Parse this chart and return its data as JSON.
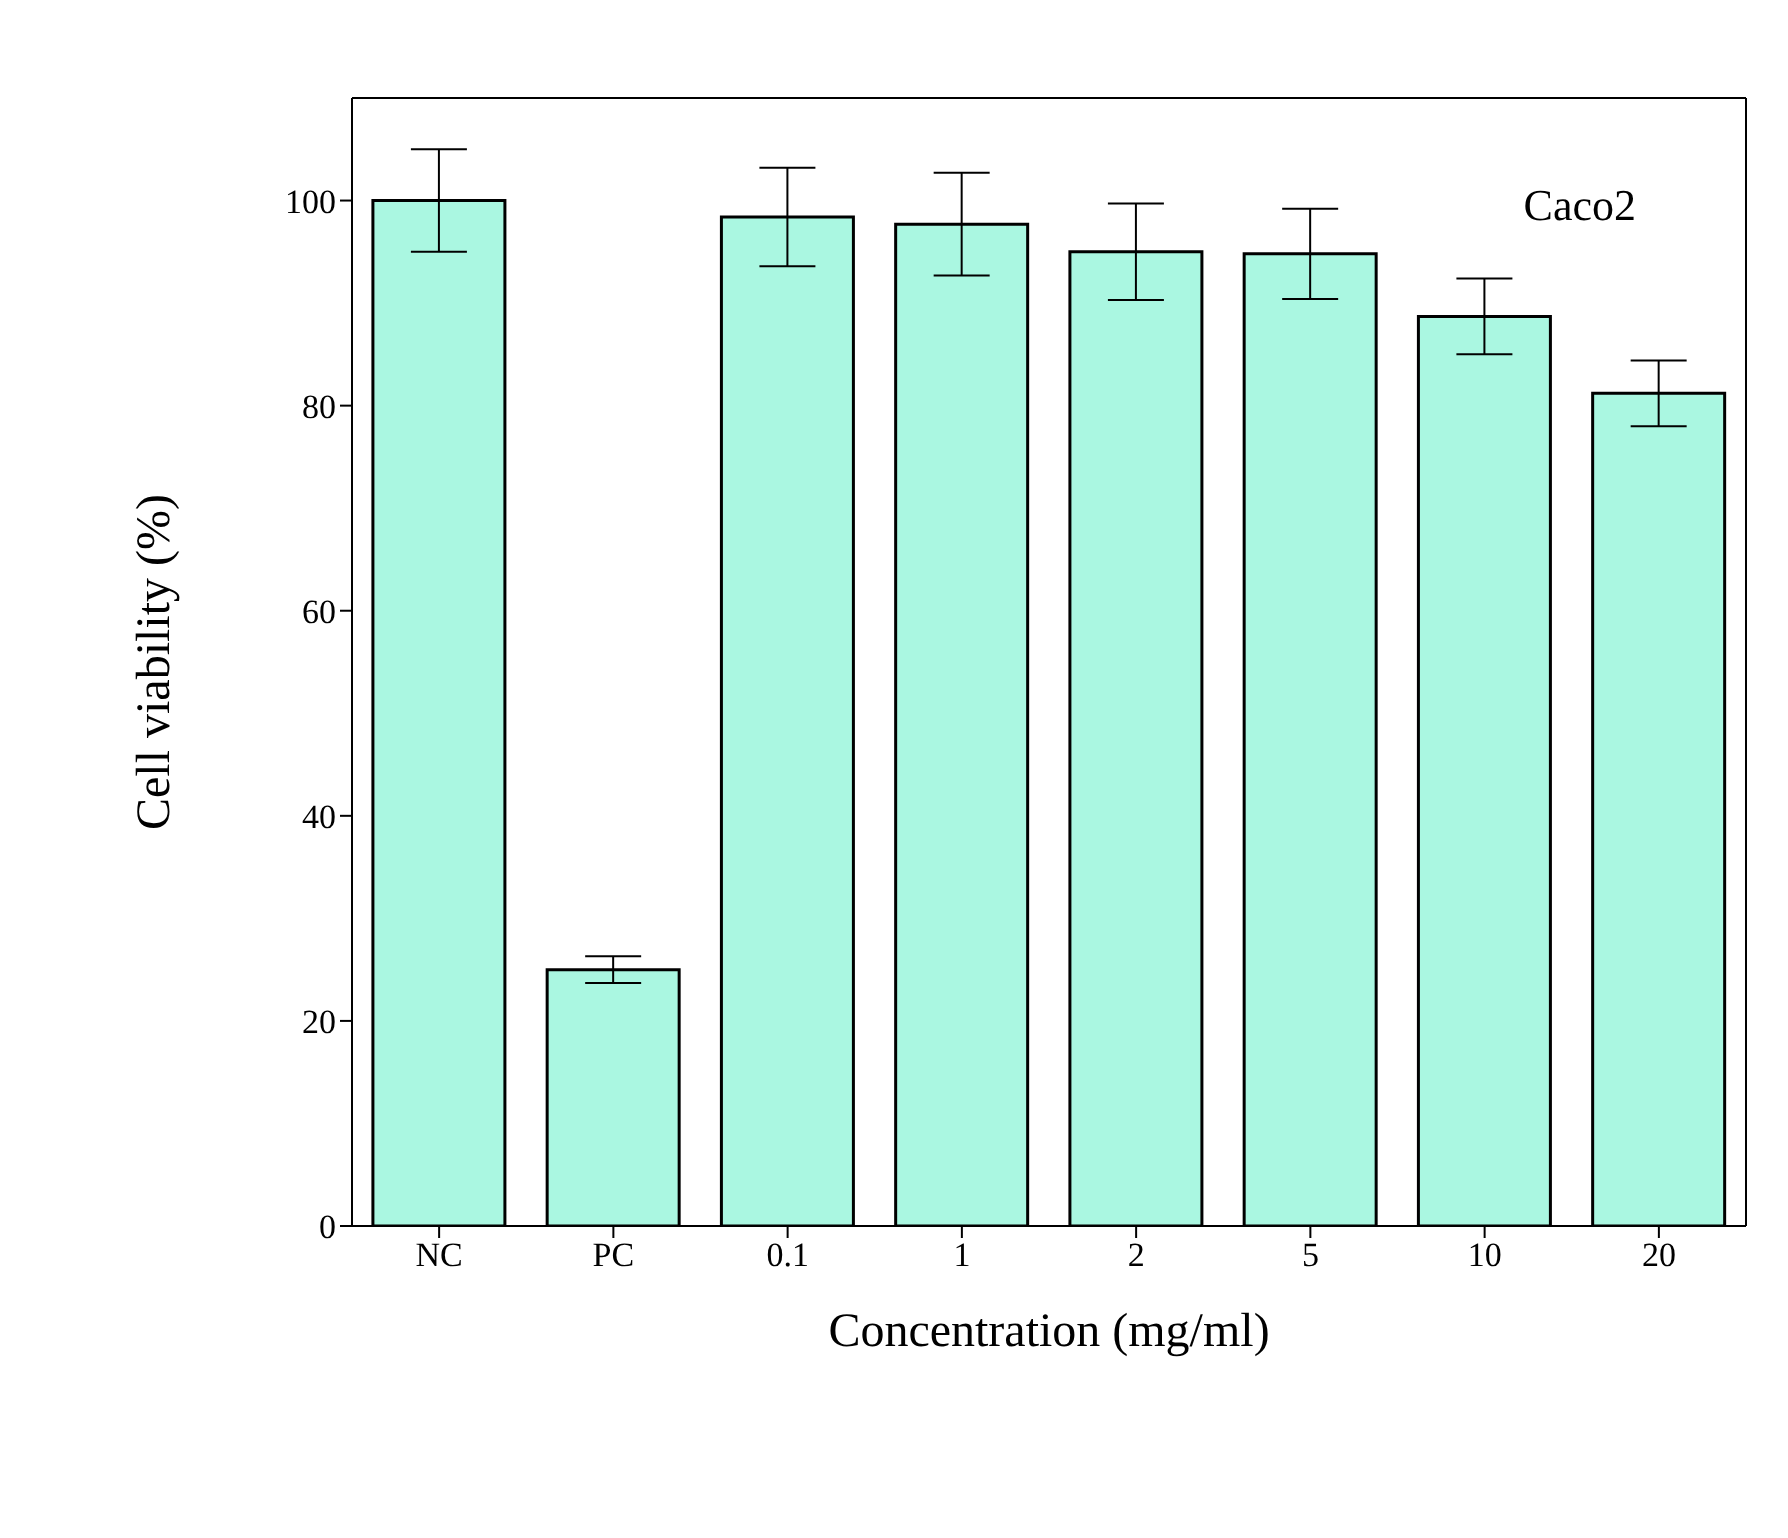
{
  "chart_data": {
    "type": "bar",
    "xlabel": "Concentration (mg/ml)",
    "ylabel": "Cell viability (%)",
    "categories": [
      "NC",
      "PC",
      "0.1",
      "1",
      "2",
      "5",
      "10",
      "20"
    ],
    "values": [
      100,
      25,
      98.4,
      97.7,
      95,
      94.8,
      88.7,
      81.2
    ],
    "errors": [
      5,
      1.3,
      4.8,
      5,
      4.7,
      4.4,
      3.7,
      3.2
    ],
    "color": "#aaf7e1",
    "ylim": [
      0,
      110
    ],
    "yticks": [
      0,
      20,
      40,
      60,
      80,
      100
    ],
    "grid": false,
    "annotations": [
      "Caco2"
    ]
  }
}
